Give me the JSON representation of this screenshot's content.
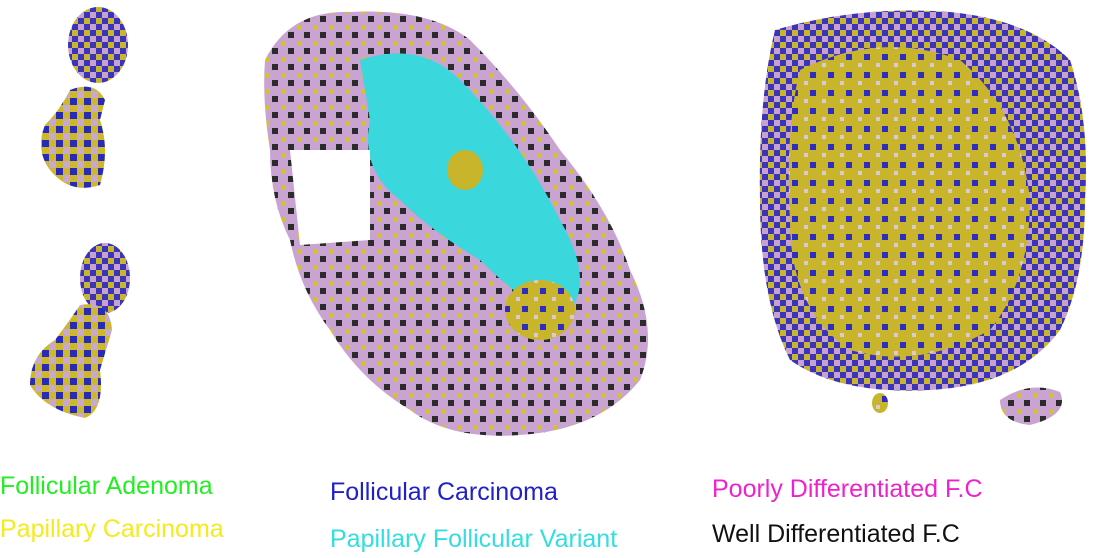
{
  "legend": [
    {
      "label": "Follicular Adenoma",
      "color": "#22ee22"
    },
    {
      "label": "Papillary Carcinoma",
      "color": "#f5ea1e"
    },
    {
      "label": "Follicular Carcinoma",
      "color": "#2020c8"
    },
    {
      "label": "Papillary Follicular Variant",
      "color": "#33dde0"
    },
    {
      "label": "Poorly Differentiated F.C",
      "color": "#ee22cc"
    },
    {
      "label": "Well Differentiated F.C",
      "color": "#111111"
    }
  ]
}
